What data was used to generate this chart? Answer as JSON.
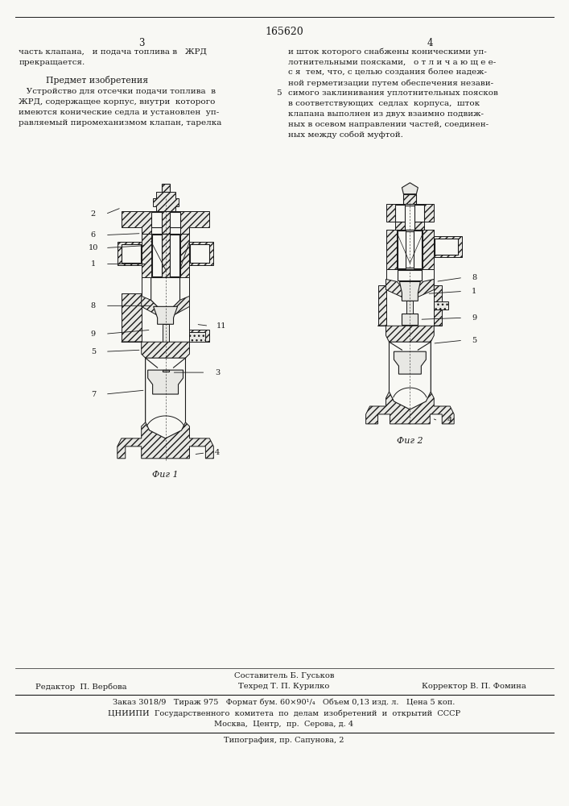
{
  "patent_number": "165620",
  "page_left": "3",
  "page_right": "4",
  "top_left_text_line1": "часть клапана,   и подача топлива в   ЖРД",
  "top_left_text_line2": "прекращается.",
  "predmet_title": "Предмет изобретения",
  "predmet_line1": "   Устройство для отсечки подачи топлива  в",
  "predmet_line2": "ЖРД, содержащее корпус, внутри  которого",
  "predmet_line3": "имеются конические седла и установлен  уп-",
  "predmet_line4": "равляемый пиромеханизмом клапан, тарелка",
  "right_col_text": "и шток которого снабжены коническими уп-\nлотнительными поясками,   о т л и ч а ю щ е е-\nс я  тем, что, с целью создания более надеж-\nной герметизации путем обеспечения незави-\nсимого заклинивания уплотнительных поясков\nв соответствующих  седлах  корпуса,  шток\nклапана выполнен из двух взаимно подвиж-\nных в осевом направлении частей, соединен-\nных между собой муфтой.",
  "line5_marker": "5",
  "fig1_label": "Фиг 1",
  "fig2_label": "Фиг 2",
  "sestavitel_label": "Составитель Б. Гуськов",
  "editor_label": "Редактор  П. Вербова",
  "tehred_label": "Техред Т. П. Курилко",
  "korrektor_label": "Корректор В. П. Фомина",
  "info_line1": "Заказ 3018/9   Тираж 975   Формат бум. 60×90¹/₄   Объем 0,13 изд. л.   Цена 5 коп.",
  "info_line2": "ЦНИИПИ  Государственного  комитета  по  делам  изобретений  и  открытий  СССР",
  "info_line3": "Москва,  Центр,  пр.  Серова, д. 4",
  "info_line4": "Типография, пр. Сапунова, 2",
  "bg_color": "#f8f8f4",
  "text_color": "#1a1a1a",
  "line_color": "#1a1a1a",
  "hatch_color": "#2a2a2a",
  "fill_white": "#f8f8f4",
  "fill_gray": "#e8e8e4"
}
